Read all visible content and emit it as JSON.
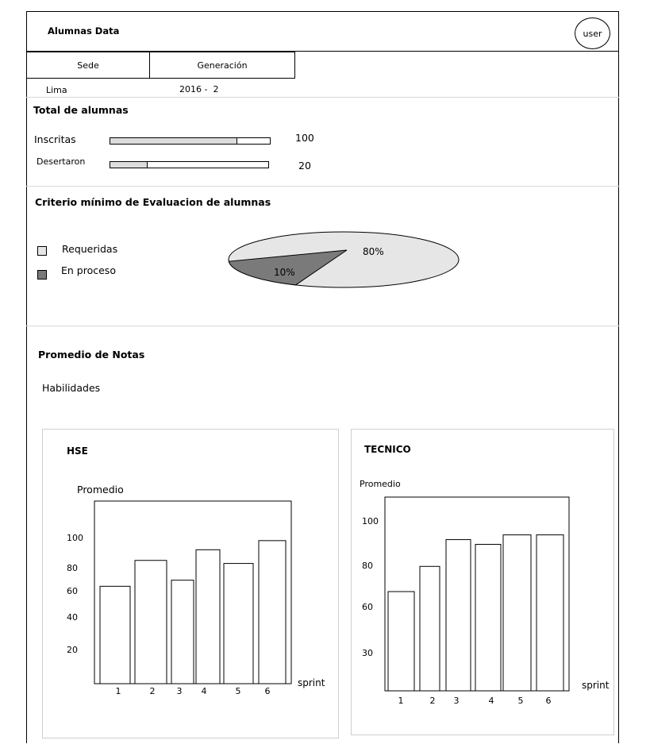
{
  "header": {
    "title": "Alumnas Data",
    "user_label": "user"
  },
  "filters": {
    "tabs": [
      {
        "label": "Sede"
      },
      {
        "label": "Generación"
      }
    ],
    "sede_value": "Lima",
    "generacion_value": "2016 -  2"
  },
  "total": {
    "title": "Total de alumnas",
    "rows": [
      {
        "label": "Inscritas",
        "value": "100",
        "fill": 0.79
      },
      {
        "label": "Desertaron",
        "value": "20",
        "fill": 0.23
      }
    ]
  },
  "criterio": {
    "title": "Criterio mínimo de Evaluacion de alumnas",
    "legend": [
      {
        "label": "Requeridas",
        "color": "#e6e6e6"
      },
      {
        "label": "En proceso",
        "color": "#7a7a7a"
      }
    ]
  },
  "promedio": {
    "title": "Promedio de Notas",
    "subtitle": "Habilidades"
  },
  "chart_data": [
    {
      "type": "pie",
      "labels": [
        "Requeridas",
        "En proceso"
      ],
      "values": [
        80,
        10
      ],
      "value_labels": [
        "80%",
        "10%"
      ],
      "colors": [
        "#e6e6e6",
        "#7a7a7a"
      ]
    },
    {
      "type": "bar",
      "title": "HSE",
      "ylabel": "Promedio",
      "xlabel": "sprint",
      "categories": [
        "1",
        "2",
        "3",
        "4",
        "5",
        "6"
      ],
      "values": [
        64,
        81,
        68,
        88,
        79,
        94
      ],
      "yticks": [
        "100",
        "80",
        "60",
        "40",
        "20"
      ],
      "ylim": [
        0,
        120
      ]
    },
    {
      "type": "bar",
      "title": "TECNICO",
      "ylabel": "Promedio",
      "xlabel": "sprint",
      "categories": [
        "1",
        "2",
        "3",
        "4",
        "5",
        "6"
      ],
      "values": [
        63,
        79,
        96,
        93,
        99,
        99
      ],
      "yticks": [
        "100",
        "80",
        "60",
        "30"
      ],
      "ylim": [
        0,
        123
      ]
    }
  ]
}
